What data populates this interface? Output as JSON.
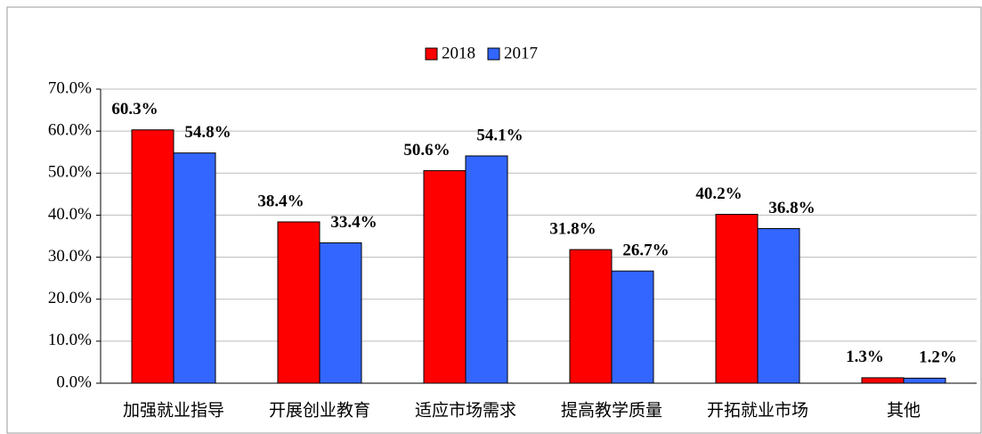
{
  "chart_data": {
    "type": "bar",
    "categories": [
      "加强就业指导",
      "开展创业教育",
      "适应市场需求",
      "提高教学质量",
      "开拓就业市场",
      "其他"
    ],
    "series": [
      {
        "name": "2018",
        "color": "#ff0000",
        "values": [
          60.3,
          38.4,
          50.6,
          31.8,
          40.2,
          1.3
        ],
        "value_labels": [
          "60.3%",
          "38.4%",
          "50.6%",
          "31.8%",
          "40.2%",
          "1.3%"
        ]
      },
      {
        "name": "2017",
        "color": "#3366ff",
        "values": [
          54.8,
          33.4,
          54.1,
          26.7,
          36.8,
          1.2
        ],
        "value_labels": [
          "54.8%",
          "33.4%",
          "54.1%",
          "26.7%",
          "36.8%",
          "1.2%"
        ]
      }
    ],
    "ylim": [
      0,
      70
    ],
    "yticks": [
      {
        "value": 0,
        "label": "0.0%"
      },
      {
        "value": 10,
        "label": "10.0%"
      },
      {
        "value": 20,
        "label": "20.0%"
      },
      {
        "value": 30,
        "label": "30.0%"
      },
      {
        "value": 40,
        "label": "40.0%"
      },
      {
        "value": 50,
        "label": "50.0%"
      },
      {
        "value": 60,
        "label": "60.0%"
      },
      {
        "value": 70,
        "label": "70.0%"
      }
    ],
    "grid": true,
    "legend": "top"
  }
}
